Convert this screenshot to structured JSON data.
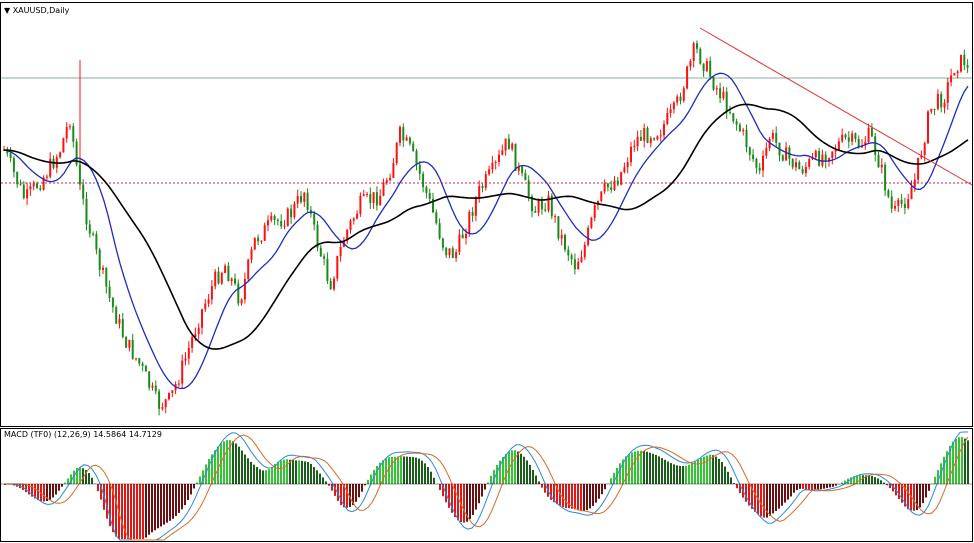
{
  "window": {
    "main_title": "▼ XAUUSD,Daily",
    "macd_title": "MACD (TF0) (12,26,9) 14.5864 14.7129"
  },
  "colors": {
    "bull": "#ff1010",
    "bear": "#1a8a1a",
    "ma_fast": "#1d2db8",
    "ma_slow": "#000000",
    "trendline": "#e03030",
    "hline_gray": "#8aa8a0",
    "hline_red": "#d02050",
    "hist_pos": "#35c435",
    "hist_neg": "#e01818",
    "signal_a": "#2a8ad8",
    "signal_b": "#d86a2a"
  },
  "chart_data": {
    "type": "candlestick",
    "symbol": "XAUUSD",
    "timeframe": "Daily",
    "indicators": [
      "fast moving average (blue)",
      "slow moving average (black)",
      "trendline (red)",
      "MACD (12,26,9)"
    ],
    "macd_values": [
      14.5864,
      14.7129
    ]
  }
}
